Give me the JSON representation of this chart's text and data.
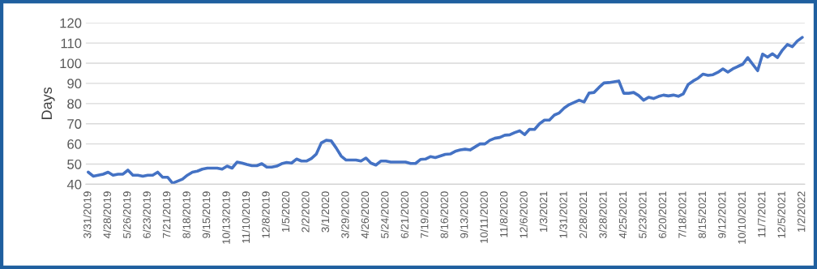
{
  "chart_data": {
    "type": "line",
    "ylabel": "Days",
    "categories": [
      "3/31/2019",
      null,
      null,
      null,
      "4/28/2019",
      null,
      null,
      null,
      "5/26/2019",
      null,
      null,
      null,
      "6/23/2019",
      null,
      null,
      null,
      "7/21/2019",
      null,
      null,
      null,
      "8/18/2019",
      null,
      null,
      null,
      "9/15/2019",
      null,
      null,
      null,
      "10/13/2019",
      null,
      null,
      null,
      "11/10/2019",
      null,
      null,
      null,
      "12/8/2019",
      null,
      null,
      null,
      "1/5/2020",
      null,
      null,
      null,
      "2/2/2020",
      null,
      null,
      null,
      "3/1/2020",
      null,
      null,
      null,
      "3/29/2020",
      null,
      null,
      null,
      "4/26/2020",
      null,
      null,
      null,
      "5/24/2020",
      null,
      null,
      null,
      "6/21/2020",
      null,
      null,
      null,
      "7/19/2020",
      null,
      null,
      null,
      "8/16/2020",
      null,
      null,
      null,
      "9/13/2020",
      null,
      null,
      null,
      "10/11/2020",
      null,
      null,
      null,
      "11/8/2020",
      null,
      null,
      null,
      "12/6/2020",
      null,
      null,
      null,
      "1/3/2021",
      null,
      null,
      null,
      "1/31/2021",
      null,
      null,
      null,
      "2/28/2021",
      null,
      null,
      null,
      "3/28/2021",
      null,
      null,
      null,
      "4/25/2021",
      null,
      null,
      null,
      "5/23/2021",
      null,
      null,
      null,
      "6/20/2021",
      null,
      null,
      null,
      "7/18/2021",
      null,
      null,
      null,
      "8/15/2021",
      null,
      null,
      null,
      "9/12/2021",
      null,
      null,
      null,
      "10/10/2021",
      null,
      null,
      null,
      "11/7/2021",
      null,
      null,
      null,
      "12/5/2021",
      null,
      null,
      null,
      "1/2/2022"
    ],
    "series": [
      {
        "color": "#4472c4",
        "values": [
          46,
          44,
          44.5,
          45,
          46,
          44.5,
          45,
          45,
          47,
          44.5,
          44.5,
          44,
          44.5,
          44.5,
          46,
          43.5,
          43.5,
          40.5,
          41.5,
          42.5,
          44.5,
          46,
          46.5,
          47.5,
          48,
          48,
          48,
          47.5,
          49,
          48,
          51,
          50.5,
          49.8,
          49.2,
          49.2,
          50.2,
          48.5,
          48.5,
          49,
          50.2,
          50.8,
          50.5,
          52.5,
          51.5,
          51.5,
          52.8,
          55,
          60.5,
          61.8,
          61.5,
          58,
          54,
          52,
          52,
          52,
          51.5,
          53,
          50.5,
          49.5,
          51.5,
          51.5,
          51,
          51,
          51,
          51,
          50.3,
          50.3,
          52.3,
          52.5,
          53.7,
          53.2,
          54,
          54.8,
          55,
          56.3,
          57,
          57.4,
          57,
          58.5,
          60,
          60,
          61.8,
          62.8,
          63.2,
          64.3,
          64.5,
          65.6,
          66.5,
          64.6,
          67.3,
          67.2,
          70,
          71.8,
          71.8,
          74.3,
          75.4,
          77.8,
          79.5,
          80.6,
          81.7,
          80.8,
          85.2,
          85.5,
          88,
          90.2,
          90.4,
          90.8,
          91.2,
          85.1,
          85.1,
          85.5,
          84,
          81.7,
          83.1,
          82.5,
          83.5,
          84.2,
          83.8,
          84.2,
          83.6,
          84.8,
          89.5,
          91.2,
          92.6,
          94.6,
          94,
          94.3,
          95.5,
          97.2,
          95.6,
          97.2,
          98.4,
          99.5,
          102.8,
          99.5,
          96.3,
          104.5,
          103,
          104.7,
          102.8,
          106.5,
          109.3,
          108.2,
          111,
          112.8
        ]
      }
    ],
    "ylim": [
      40,
      120
    ],
    "yticks": [
      40,
      50,
      60,
      70,
      80,
      90,
      100,
      110,
      120
    ],
    "grid": "y",
    "marker": "none",
    "line_style": "solid"
  }
}
